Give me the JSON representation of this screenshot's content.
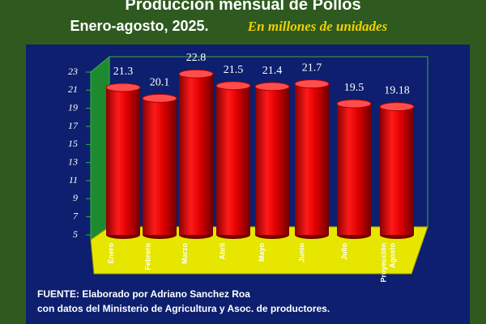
{
  "chart_data": {
    "type": "bar",
    "title": "Producción mensual de Pollos",
    "subtitle": "Enero-agosto, 2025.",
    "unit_note": "En millones de unidades",
    "categories": [
      "Enero",
      "Febrero",
      "Marzo",
      "Abril",
      "Mayo",
      "Junio",
      "Julio",
      "Proyección Agosto"
    ],
    "values": [
      21.3,
      20.1,
      22.8,
      21.5,
      21.4,
      21.7,
      19.5,
      19.18
    ],
    "color": "#e00000",
    "ylim": [
      5,
      23
    ],
    "yticks": [
      5,
      7,
      9,
      11,
      13,
      15,
      17,
      19,
      21,
      23
    ],
    "grid": false,
    "source": [
      "FUENTE: Elaborado por Adriano Sanchez Roa",
      "con datos del Ministerio de Agricultura y Asoc. de productores."
    ]
  }
}
